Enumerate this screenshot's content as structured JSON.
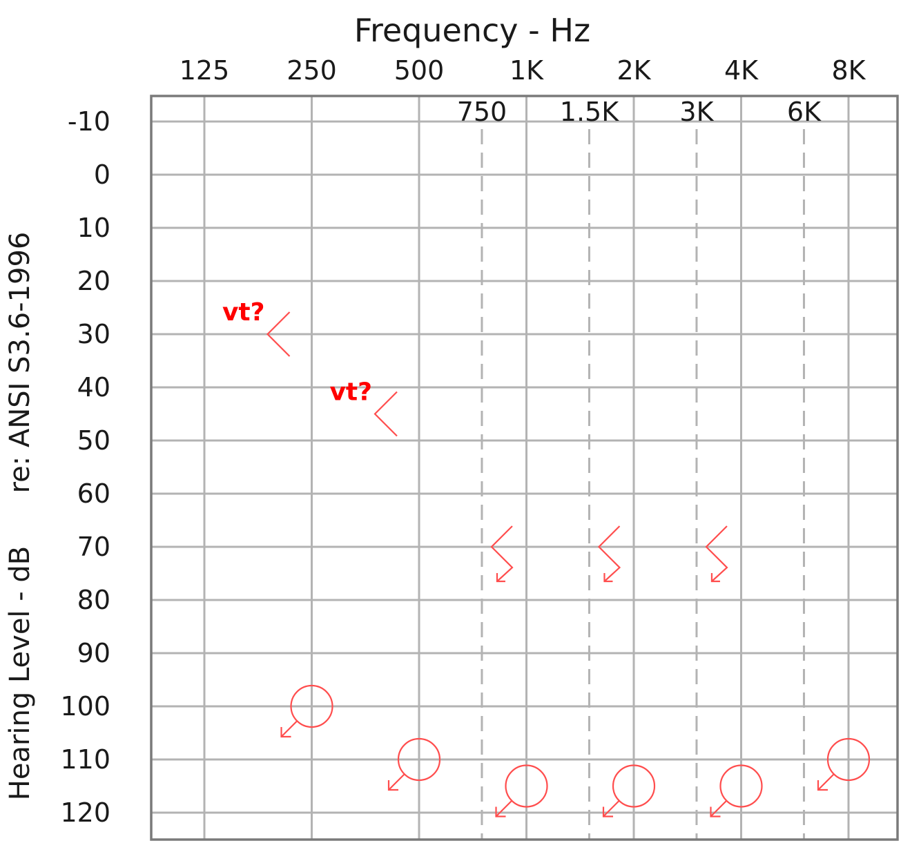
{
  "chart_data": {
    "type": "scatter",
    "title": "Frequency - Hz",
    "ylabel": "Hearing Level - dB",
    "ylabel_reference": "re: ANSI S3.6-1996",
    "y_axis_inverted": true,
    "ylim": [
      -10,
      120
    ],
    "y_ticks": [
      -10,
      0,
      10,
      20,
      30,
      40,
      50,
      60,
      70,
      80,
      90,
      100,
      110,
      120
    ],
    "x_scale": "log",
    "x_major": [
      {
        "hz": 125,
        "label": "125"
      },
      {
        "hz": 250,
        "label": "250"
      },
      {
        "hz": 500,
        "label": "500"
      },
      {
        "hz": 1000,
        "label": "1K"
      },
      {
        "hz": 2000,
        "label": "2K"
      },
      {
        "hz": 4000,
        "label": "4K"
      },
      {
        "hz": 8000,
        "label": "8K"
      }
    ],
    "x_minor": [
      {
        "hz": 750,
        "label": "750"
      },
      {
        "hz": 1500,
        "label": "1.5K"
      },
      {
        "hz": 3000,
        "label": "3K"
      },
      {
        "hz": 6000,
        "label": "6K"
      }
    ],
    "grid": true,
    "marker_color": "#ff4d4d",
    "series": [
      {
        "symbol": "bone-left-unmasked",
        "points": [
          {
            "hz": 250,
            "db": 30,
            "note": "vt?"
          },
          {
            "hz": 500,
            "db": 45,
            "note": "vt?"
          }
        ]
      },
      {
        "symbol": "bone-left-no-response",
        "points": [
          {
            "hz": 750,
            "db": 70
          },
          {
            "hz": 1500,
            "db": 70
          },
          {
            "hz": 3000,
            "db": 70
          }
        ]
      },
      {
        "symbol": "air-right-no-response",
        "points": [
          {
            "hz": 250,
            "db": 100
          },
          {
            "hz": 500,
            "db": 110
          },
          {
            "hz": 1000,
            "db": 115
          },
          {
            "hz": 2000,
            "db": 115
          },
          {
            "hz": 4000,
            "db": 115
          },
          {
            "hz": 8000,
            "db": 110
          }
        ]
      }
    ]
  }
}
